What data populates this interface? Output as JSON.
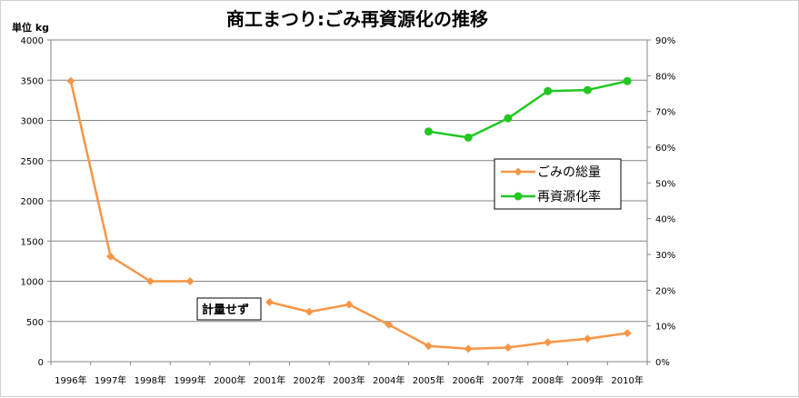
{
  "chart_data": {
    "type": "line",
    "title": "商工まつり:ごみ再資源化の推移",
    "unit_label": "単位 kg",
    "categories": [
      "1996年",
      "1997年",
      "1998年",
      "1999年",
      "2000年",
      "2001年",
      "2002年",
      "2003年",
      "2004年",
      "2005年",
      "2006年",
      "2007年",
      "2008年",
      "2009年",
      "2010年"
    ],
    "y_left": {
      "min": 0,
      "max": 4000,
      "ticks": [
        "0",
        "500",
        "1000",
        "1500",
        "2000",
        "2500",
        "3000",
        "3500",
        "4000"
      ]
    },
    "y_right": {
      "min": 0,
      "max": 90,
      "ticks": [
        "0%",
        "10%",
        "20%",
        "30%",
        "40%",
        "50%",
        "60%",
        "70%",
        "80%",
        "90%"
      ]
    },
    "grid": true,
    "legend_position": "right-middle",
    "series": [
      {
        "name": "ごみの総量",
        "axis": "left",
        "color": "#F79646",
        "marker": "diamond",
        "values": [
          3490,
          1310,
          1000,
          1000,
          null,
          740,
          620,
          710,
          460,
          195,
          160,
          175,
          240,
          285,
          355
        ]
      },
      {
        "name": "再資源化率",
        "axis": "right",
        "color": "#22C722",
        "marker": "circle",
        "values": [
          null,
          null,
          null,
          null,
          null,
          null,
          null,
          null,
          null,
          64.4,
          62.7,
          68.1,
          75.7,
          76.0,
          78.5
        ]
      }
    ],
    "annotation": "計量せず"
  }
}
